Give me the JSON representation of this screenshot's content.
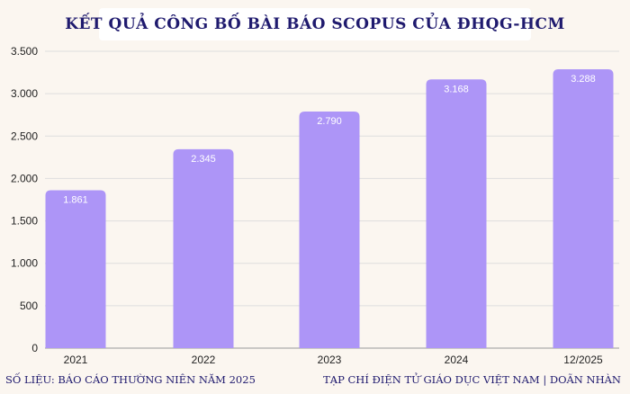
{
  "title": "KẾT QUẢ CÔNG BỐ BÀI BÁO SCOPUS CỦA ĐHQG-HCM",
  "footer": {
    "source": "SỐ LIỆU: BÁO CÁO THƯỜNG NIÊN NĂM 2025",
    "credit": "TẠP CHÍ ĐIỆN TỬ GIÁO DỤC VIỆT NAM | DOÃN NHÀN"
  },
  "chart_data": {
    "type": "bar",
    "title": "KẾT QUẢ CÔNG BỐ BÀI BÁO SCOPUS CỦA ĐHQG-HCM",
    "categories": [
      "2021",
      "2022",
      "2023",
      "2024",
      "12/2025"
    ],
    "values": [
      1861,
      2345,
      2790,
      3168,
      3288
    ],
    "value_labels": [
      "1.861",
      "2.345",
      "2.790",
      "3.168",
      "3.288"
    ],
    "ylim": [
      0,
      3500
    ],
    "yticks": [
      0,
      500,
      1000,
      1500,
      2000,
      2500,
      3000,
      3500
    ],
    "ytick_labels": [
      "0",
      "500",
      "1.000",
      "1.500",
      "2.000",
      "2.500",
      "3.000",
      "3.500"
    ],
    "xlabel": "",
    "ylabel": "",
    "grid": true,
    "bar_color": "#ad95f7"
  }
}
